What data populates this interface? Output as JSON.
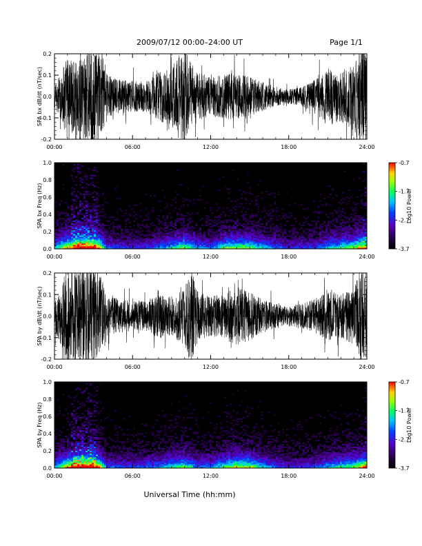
{
  "header": {
    "title": "2009/07/12   00:00–24:00 UT",
    "page": "Page 1/1"
  },
  "xlabel": "Universal Time (hh:mm)",
  "chart_data": [
    {
      "type": "line",
      "ylabel": "SPA bx dB/dt (nT/sec)",
      "xlim": [
        0,
        24
      ],
      "ylim": [
        -0.2,
        0.2
      ],
      "x_ticks": [
        "00:00",
        "06:00",
        "12:00",
        "18:00",
        "24:00"
      ],
      "y_ticks": [
        "0.2",
        "0.1",
        "0.0",
        "-0.1",
        "-0.2"
      ],
      "activity_profile": [
        [
          0,
          0.2
        ],
        [
          0.5,
          0.5
        ],
        [
          1,
          0.9
        ],
        [
          1.5,
          0.7
        ],
        [
          2,
          1.0
        ],
        [
          2.5,
          1.0
        ],
        [
          3,
          1.0
        ],
        [
          3.5,
          0.9
        ],
        [
          4,
          0.45
        ],
        [
          5,
          0.35
        ],
        [
          6,
          0.35
        ],
        [
          7,
          0.3
        ],
        [
          8,
          0.5
        ],
        [
          9,
          0.6
        ],
        [
          9.5,
          0.85
        ],
        [
          10,
          1.0
        ],
        [
          10.5,
          0.7
        ],
        [
          11,
          0.5
        ],
        [
          12,
          0.4
        ],
        [
          13,
          0.45
        ],
        [
          14,
          0.5
        ],
        [
          15,
          0.4
        ],
        [
          16,
          0.3
        ],
        [
          17,
          0.2
        ],
        [
          18,
          0.15
        ],
        [
          19,
          0.2
        ],
        [
          20,
          0.35
        ],
        [
          21,
          0.6
        ],
        [
          22,
          0.5
        ],
        [
          23,
          0.7
        ],
        [
          23.5,
          1.0
        ],
        [
          24,
          1.0
        ]
      ]
    },
    {
      "type": "heatmap",
      "ylabel": "SPA bx Freq (Hz)",
      "xlim": [
        0,
        24
      ],
      "ylim": [
        0,
        1.0
      ],
      "x_ticks": [
        "00:00",
        "06:00",
        "12:00",
        "18:00",
        "24:00"
      ],
      "y_ticks": [
        "1.0",
        "0.8",
        "0.6",
        "0.4",
        "0.2",
        "0.0"
      ],
      "colorbar": {
        "label": "Log10 Power",
        "ticks": [
          "-0.7",
          "-1.7",
          "-2.7",
          "-3.7"
        ],
        "range": [
          -3.7,
          -0.7
        ]
      },
      "activity_profile": [
        [
          0,
          0.5
        ],
        [
          1,
          0.8
        ],
        [
          2,
          1.0
        ],
        [
          3,
          1.0
        ],
        [
          3.5,
          0.8
        ],
        [
          4,
          0.4
        ],
        [
          6,
          0.3
        ],
        [
          8,
          0.4
        ],
        [
          10,
          0.7
        ],
        [
          11,
          0.45
        ],
        [
          12,
          0.4
        ],
        [
          13,
          0.6
        ],
        [
          14,
          0.7
        ],
        [
          15,
          0.65
        ],
        [
          16,
          0.5
        ],
        [
          17,
          0.4
        ],
        [
          18,
          0.3
        ],
        [
          20,
          0.35
        ],
        [
          21,
          0.5
        ],
        [
          23,
          0.7
        ],
        [
          24,
          0.9
        ]
      ]
    },
    {
      "type": "line",
      "ylabel": "SPA by dB/dt (nT/sec)",
      "xlim": [
        0,
        24
      ],
      "ylim": [
        -0.2,
        0.2
      ],
      "x_ticks": [
        "00:00",
        "06:00",
        "12:00",
        "18:00",
        "24:00"
      ],
      "y_ticks": [
        "0.2",
        "0.1",
        "0.0",
        "-0.1",
        "-0.2"
      ],
      "activity_profile": [
        [
          0,
          0.3
        ],
        [
          0.5,
          0.6
        ],
        [
          1,
          1.0
        ],
        [
          2,
          1.0
        ],
        [
          3,
          1.0
        ],
        [
          3.5,
          0.9
        ],
        [
          4,
          0.4
        ],
        [
          5,
          0.35
        ],
        [
          6,
          0.3
        ],
        [
          7,
          0.3
        ],
        [
          8,
          0.45
        ],
        [
          9,
          0.4
        ],
        [
          10,
          0.6
        ],
        [
          10.5,
          1.0
        ],
        [
          11,
          0.5
        ],
        [
          12,
          0.4
        ],
        [
          13,
          0.45
        ],
        [
          14,
          0.6
        ],
        [
          15,
          0.5
        ],
        [
          16,
          0.35
        ],
        [
          17,
          0.25
        ],
        [
          18,
          0.2
        ],
        [
          19,
          0.25
        ],
        [
          20,
          0.35
        ],
        [
          21,
          0.5
        ],
        [
          22,
          0.45
        ],
        [
          23,
          0.6
        ],
        [
          23.6,
          1.0
        ],
        [
          24,
          1.0
        ]
      ]
    },
    {
      "type": "heatmap",
      "ylabel": "SPA by Freq (Hz)",
      "xlim": [
        0,
        24
      ],
      "ylim": [
        0,
        1.0
      ],
      "x_ticks": [
        "00:00",
        "06:00",
        "12:00",
        "18:00",
        "24:00"
      ],
      "y_ticks": [
        "1.0",
        "0.8",
        "0.6",
        "0.4",
        "0.2",
        "0.0"
      ],
      "colorbar": {
        "label": "Log10 Power",
        "ticks": [
          "-0.7",
          "-1.7",
          "-2.7",
          "-3.7"
        ],
        "range": [
          -3.7,
          -0.7
        ]
      },
      "activity_profile": [
        [
          0,
          0.5
        ],
        [
          1,
          0.8
        ],
        [
          2,
          1.0
        ],
        [
          3,
          1.0
        ],
        [
          3.5,
          0.8
        ],
        [
          4,
          0.4
        ],
        [
          6,
          0.35
        ],
        [
          8,
          0.45
        ],
        [
          10,
          0.65
        ],
        [
          11,
          0.4
        ],
        [
          12,
          0.45
        ],
        [
          13,
          0.6
        ],
        [
          14,
          0.75
        ],
        [
          15,
          0.7
        ],
        [
          16,
          0.5
        ],
        [
          17,
          0.4
        ],
        [
          18,
          0.3
        ],
        [
          20,
          0.35
        ],
        [
          21,
          0.5
        ],
        [
          23,
          0.65
        ],
        [
          24,
          0.9
        ]
      ]
    }
  ]
}
